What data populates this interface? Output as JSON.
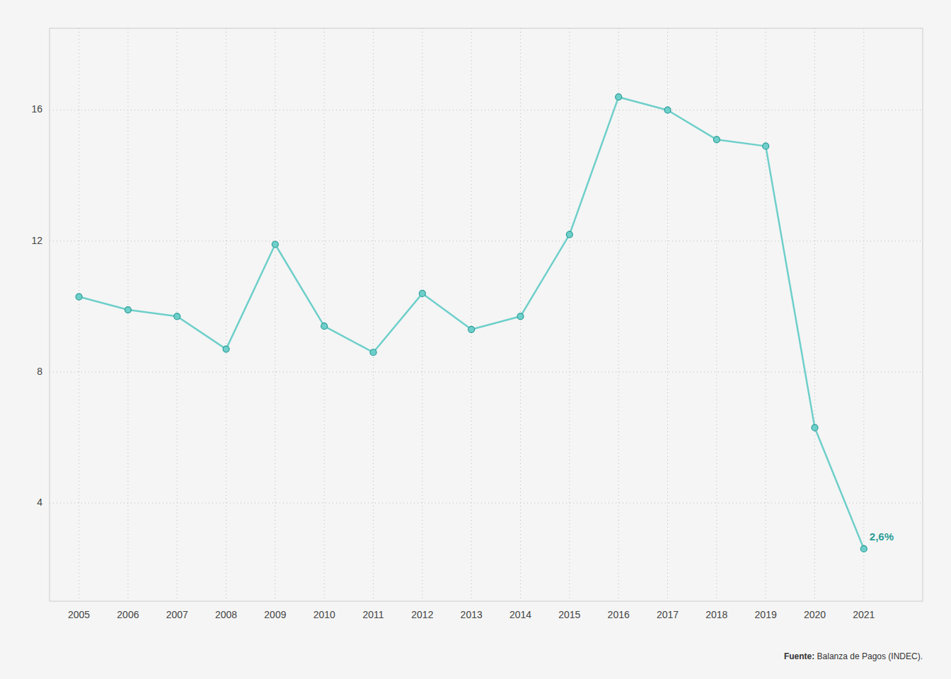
{
  "chart_data": {
    "type": "line",
    "x": [
      2005,
      2006,
      2007,
      2008,
      2009,
      2010,
      2011,
      2012,
      2013,
      2014,
      2015,
      2016,
      2017,
      2018,
      2019,
      2020,
      2021
    ],
    "values": [
      10.3,
      9.9,
      9.7,
      8.7,
      11.9,
      9.4,
      8.6,
      10.4,
      9.3,
      9.7,
      12.2,
      16.4,
      16.0,
      15.1,
      14.9,
      6.3,
      2.6
    ],
    "color": "#6ecfca",
    "marker": "circle",
    "xlim": [
      2004.4,
      2022.2
    ],
    "xticks": [
      2005,
      2006,
      2007,
      2008,
      2009,
      2010,
      2011,
      2012,
      2013,
      2014,
      2015,
      2016,
      2017,
      2018,
      2019,
      2020,
      2021
    ],
    "ylim": [
      1.0,
      18.5
    ],
    "yticks": [
      4,
      8,
      12,
      16
    ],
    "grid": true,
    "annotations": [
      {
        "text": "2,6%",
        "x": 2021,
        "y": 2.6
      }
    ],
    "source": [
      "Fuente:",
      "Balanza de Pagos (INDEC)."
    ]
  }
}
